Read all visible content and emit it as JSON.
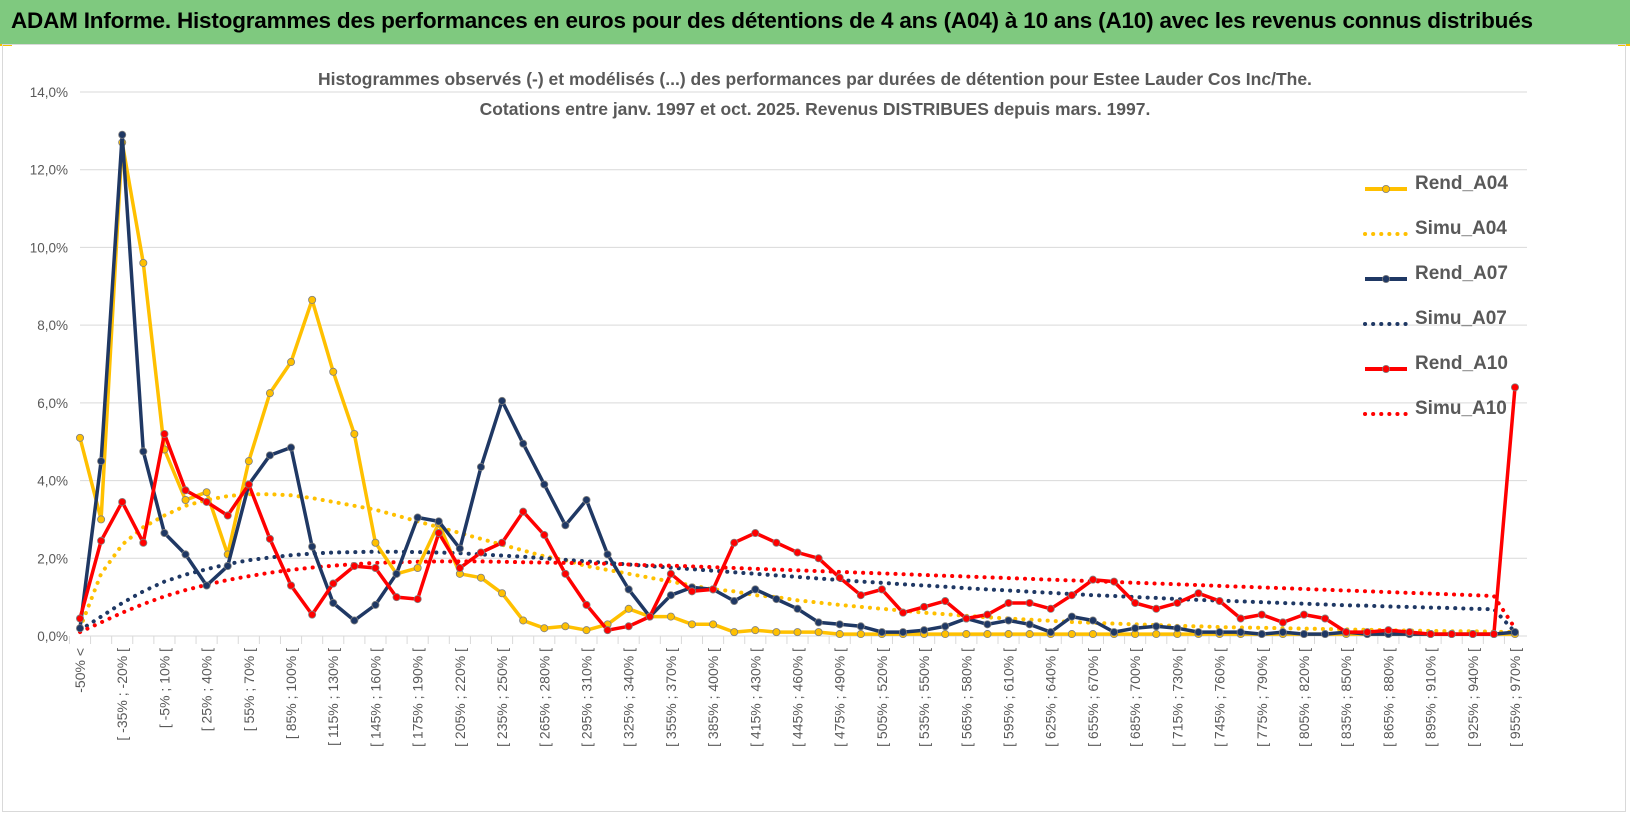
{
  "banner": {
    "title": "ADAM Informe. Histogrammes des performances en euros pour des détentions de 4 ans (A04) à 10 ans (A10) avec les revenus connus distribués"
  },
  "colors": {
    "banner_bg": "#7fc97f",
    "A04": "#ffc000",
    "A07": "#1f3864",
    "A10": "#ff0000",
    "grid": "#d9d9d9",
    "axis_text": "#595959"
  },
  "chart_data": {
    "type": "line",
    "title": "Histogrammes observés (-) et modélisés (...) des performances par durées de détention pour Estee Lauder Cos Inc/The.",
    "subtitle": "Cotations entre janv. 1997 et oct. 2025.  Revenus DISTRIBUES depuis mars. 1997.",
    "ylim": [
      0,
      14
    ],
    "y_ticks": [
      "0,0%",
      "2,0%",
      "4,0%",
      "6,0%",
      "8,0%",
      "10,0%",
      "12,0%",
      "14,0%"
    ],
    "grid": "horizontal",
    "legend_position": "right",
    "categories_count": 69,
    "x_tick_labels": [
      "-50% <",
      "[ -35% ; -20% [",
      "[ -5% ; 10% [",
      "[ 25% ; 40% [",
      "[ 55% ; 70% [",
      "[ 85% ; 100% [",
      "[ 115% ; 130% [",
      "[ 145% ; 160% [",
      "[ 175% ; 190% [",
      "[ 205% ; 220% [",
      "[ 235% ; 250% [",
      "[ 265% ; 280% [",
      "[ 295% ; 310% [",
      "[ 325% ; 340% [",
      "[ 355% ; 370% [",
      "[ 385% ; 400% [",
      "[ 415% ; 430% [",
      "[ 445% ; 460% [",
      "[ 475% ; 490% [",
      "[ 505% ; 520% [",
      "[ 535% ; 550% [",
      "[ 565% ; 580% [",
      "[ 595% ; 610% [",
      "[ 625% ; 640% [",
      "[ 655% ; 670% [",
      "[ 685% ; 700% [",
      "[ 715% ; 730% [",
      "[ 745% ; 760% [",
      "[ 775% ; 790% [",
      "[ 805% ; 820% [",
      "[ 835% ; 850% [",
      "[ 865% ; 880% [",
      "[ 895% ; 910% [",
      "[ 925% ; 940% [",
      "[ 955% ; 970% ["
    ],
    "series": [
      {
        "name": "Rend_A04",
        "style": "solid",
        "markers": true,
        "color": "#ffc000",
        "values": [
          5.1,
          3.0,
          12.7,
          9.6,
          4.8,
          3.5,
          3.7,
          2.1,
          4.5,
          6.25,
          7.05,
          8.65,
          6.8,
          5.2,
          2.4,
          1.6,
          1.75,
          2.9,
          1.6,
          1.5,
          1.1,
          0.4,
          0.2,
          0.25,
          0.15,
          0.3,
          0.7,
          0.5,
          0.5,
          0.3,
          0.3,
          0.1,
          0.15,
          0.1,
          0.1,
          0.1,
          0.05,
          0.05,
          0.05,
          0.05,
          0.05,
          0.05,
          0.05,
          0.05,
          0.05,
          0.05,
          0.05,
          0.05,
          0.05,
          0.05,
          0.05,
          0.05,
          0.05,
          0.05,
          0.05,
          0.05,
          0.05,
          0.05,
          0.05,
          0.05,
          0.05,
          0.05,
          0.05,
          0.05,
          0.05,
          0.05,
          0.05,
          0.05,
          0.05
        ]
      },
      {
        "name": "Simu_A04",
        "style": "dotted",
        "markers": false,
        "color": "#ffc000",
        "values": [
          0.2,
          1.6,
          2.35,
          2.8,
          3.1,
          3.35,
          3.5,
          3.6,
          3.65,
          3.65,
          3.62,
          3.55,
          3.45,
          3.35,
          3.25,
          3.1,
          2.95,
          2.8,
          2.65,
          2.5,
          2.35,
          2.2,
          2.05,
          1.95,
          1.8,
          1.7,
          1.6,
          1.5,
          1.4,
          1.3,
          1.2,
          1.15,
          1.05,
          1.0,
          0.92,
          0.86,
          0.8,
          0.75,
          0.7,
          0.65,
          0.6,
          0.56,
          0.52,
          0.48,
          0.45,
          0.42,
          0.39,
          0.36,
          0.34,
          0.32,
          0.3,
          0.28,
          0.26,
          0.25,
          0.23,
          0.22,
          0.21,
          0.2,
          0.19,
          0.18,
          0.17,
          0.16,
          0.15,
          0.14,
          0.13,
          0.12,
          0.12,
          0.11,
          0.1
        ]
      },
      {
        "name": "Rend_A07",
        "style": "solid",
        "markers": true,
        "color": "#1f3864",
        "values": [
          0.2,
          4.5,
          12.9,
          4.75,
          2.65,
          2.1,
          1.3,
          1.8,
          3.9,
          4.65,
          4.85,
          2.3,
          0.85,
          0.4,
          0.8,
          1.6,
          3.05,
          2.95,
          2.25,
          4.35,
          6.05,
          4.95,
          3.9,
          2.85,
          3.5,
          2.1,
          1.2,
          0.5,
          1.05,
          1.25,
          1.2,
          0.9,
          1.2,
          0.95,
          0.7,
          0.35,
          0.3,
          0.25,
          0.1,
          0.1,
          0.15,
          0.25,
          0.45,
          0.3,
          0.4,
          0.3,
          0.1,
          0.5,
          0.4,
          0.1,
          0.2,
          0.25,
          0.2,
          0.1,
          0.1,
          0.1,
          0.05,
          0.1,
          0.05,
          0.05,
          0.1,
          0.05,
          0.05,
          0.05,
          0.05,
          0.05,
          0.05,
          0.05,
          0.1
        ]
      },
      {
        "name": "Simu_A07",
        "style": "dotted",
        "markers": false,
        "color": "#1f3864",
        "values": [
          0.15,
          0.5,
          0.85,
          1.15,
          1.4,
          1.58,
          1.72,
          1.85,
          1.95,
          2.02,
          2.08,
          2.12,
          2.15,
          2.16,
          2.17,
          2.17,
          2.16,
          2.15,
          2.13,
          2.1,
          2.07,
          2.04,
          2.0,
          1.96,
          1.92,
          1.88,
          1.84,
          1.8,
          1.76,
          1.72,
          1.68,
          1.64,
          1.6,
          1.56,
          1.52,
          1.48,
          1.44,
          1.4,
          1.37,
          1.33,
          1.3,
          1.27,
          1.23,
          1.2,
          1.17,
          1.14,
          1.11,
          1.08,
          1.05,
          1.03,
          1.0,
          0.98,
          0.95,
          0.93,
          0.91,
          0.89,
          0.87,
          0.85,
          0.83,
          0.81,
          0.79,
          0.78,
          0.76,
          0.75,
          0.73,
          0.72,
          0.7,
          0.69,
          0.1
        ]
      },
      {
        "name": "Rend_A10",
        "style": "solid",
        "markers": true,
        "color": "#ff0000",
        "values": [
          0.45,
          2.45,
          3.45,
          2.4,
          5.2,
          3.75,
          3.45,
          3.1,
          3.9,
          2.5,
          1.3,
          0.55,
          1.35,
          1.8,
          1.75,
          1.0,
          0.95,
          2.65,
          1.75,
          2.15,
          2.4,
          3.2,
          2.6,
          1.6,
          0.8,
          0.15,
          0.25,
          0.5,
          1.6,
          1.15,
          1.2,
          2.4,
          2.65,
          2.4,
          2.15,
          2.0,
          1.5,
          1.05,
          1.2,
          0.6,
          0.75,
          0.9,
          0.45,
          0.55,
          0.85,
          0.85,
          0.7,
          1.05,
          1.45,
          1.4,
          0.85,
          0.7,
          0.85,
          1.1,
          0.9,
          0.45,
          0.55,
          0.35,
          0.55,
          0.45,
          0.1,
          0.1,
          0.15,
          0.1,
          0.05,
          0.05,
          0.05,
          0.05,
          6.4
        ]
      },
      {
        "name": "Simu_A10",
        "style": "dotted",
        "markers": false,
        "color": "#ff0000",
        "values": [
          0.1,
          0.35,
          0.6,
          0.82,
          1.02,
          1.18,
          1.32,
          1.44,
          1.54,
          1.63,
          1.7,
          1.76,
          1.81,
          1.85,
          1.88,
          1.9,
          1.91,
          1.92,
          1.92,
          1.92,
          1.91,
          1.9,
          1.89,
          1.88,
          1.87,
          1.86,
          1.84,
          1.82,
          1.81,
          1.79,
          1.77,
          1.75,
          1.73,
          1.71,
          1.69,
          1.67,
          1.65,
          1.63,
          1.61,
          1.59,
          1.57,
          1.55,
          1.53,
          1.51,
          1.49,
          1.47,
          1.45,
          1.43,
          1.41,
          1.39,
          1.37,
          1.35,
          1.33,
          1.31,
          1.29,
          1.27,
          1.25,
          1.23,
          1.21,
          1.19,
          1.17,
          1.15,
          1.13,
          1.11,
          1.09,
          1.07,
          1.05,
          1.03,
          0.2
        ]
      }
    ]
  }
}
